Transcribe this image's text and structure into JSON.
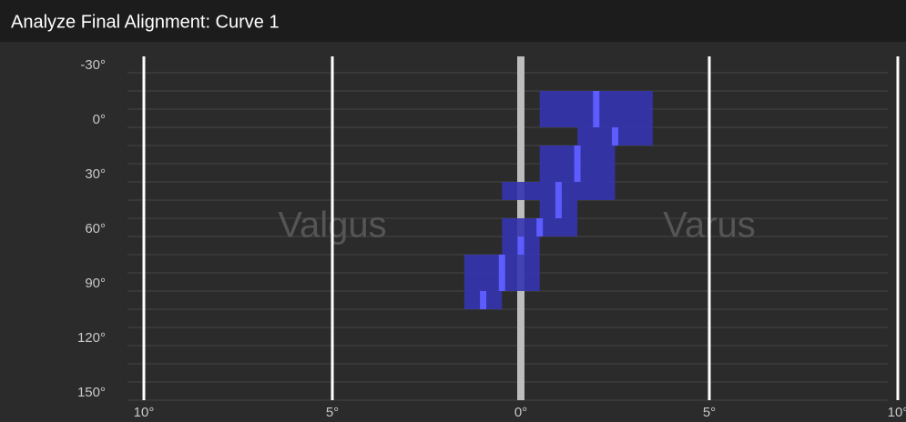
{
  "chart_data": {
    "type": "range",
    "title": "Analyze Final Alignment: Curve 1",
    "regions": [
      "Valgus",
      "Varus"
    ],
    "xlim": [
      -10,
      10
    ],
    "xticks": [
      {
        "value": -10,
        "label": "10°"
      },
      {
        "value": -5,
        "label": "5°"
      },
      {
        "value": 0,
        "label": "0°"
      },
      {
        "value": 5,
        "label": "5°"
      },
      {
        "value": 10,
        "label": "10°"
      }
    ],
    "ylim": [
      -30,
      150
    ],
    "yticks": [
      {
        "value": -30,
        "label": "-30°"
      },
      {
        "value": 0,
        "label": "0°"
      },
      {
        "value": 30,
        "label": "30°"
      },
      {
        "value": 60,
        "label": "60°"
      },
      {
        "value": 90,
        "label": "90°"
      },
      {
        "value": 120,
        "label": "120°"
      },
      {
        "value": 150,
        "label": "150°"
      }
    ],
    "yminor_ticks": [
      -30,
      -20,
      -10,
      0,
      10,
      20,
      30,
      40,
      50,
      60,
      70,
      80,
      90,
      100,
      110,
      120,
      130,
      140,
      150
    ],
    "rows": [
      {
        "from": -20,
        "to": -10,
        "low": 0.5,
        "high": 3.5,
        "current": 2
      },
      {
        "from": -10,
        "to": 0,
        "low": 0.5,
        "high": 3.5,
        "current": 2
      },
      {
        "from": 0,
        "to": 10,
        "low": 1.5,
        "high": 3.5,
        "current": 2.5
      },
      {
        "from": 10,
        "to": 20,
        "low": 0.5,
        "high": 2.5,
        "current": 1.5
      },
      {
        "from": 20,
        "to": 30,
        "low": 0.5,
        "high": 2.5,
        "current": 1.5
      },
      {
        "from": 30,
        "to": 40,
        "low": -0.5,
        "high": 2.5,
        "current": 1
      },
      {
        "from": 40,
        "to": 50,
        "low": 0.5,
        "high": 1.5,
        "current": 1
      },
      {
        "from": 50,
        "to": 60,
        "low": -0.5,
        "high": 1.5,
        "current": 0.5
      },
      {
        "from": 60,
        "to": 70,
        "low": -0.5,
        "high": 0.5,
        "current": 0
      },
      {
        "from": 70,
        "to": 80,
        "low": -1.5,
        "high": 0.5,
        "current": -0.5
      },
      {
        "from": 80,
        "to": 90,
        "low": -1.5,
        "high": 0.5,
        "current": -0.5
      },
      {
        "from": 90,
        "to": 100,
        "low": -1.5,
        "high": -0.5,
        "current": -1
      }
    ],
    "color": "#3434b0",
    "marker_color": "#5c5cff"
  }
}
